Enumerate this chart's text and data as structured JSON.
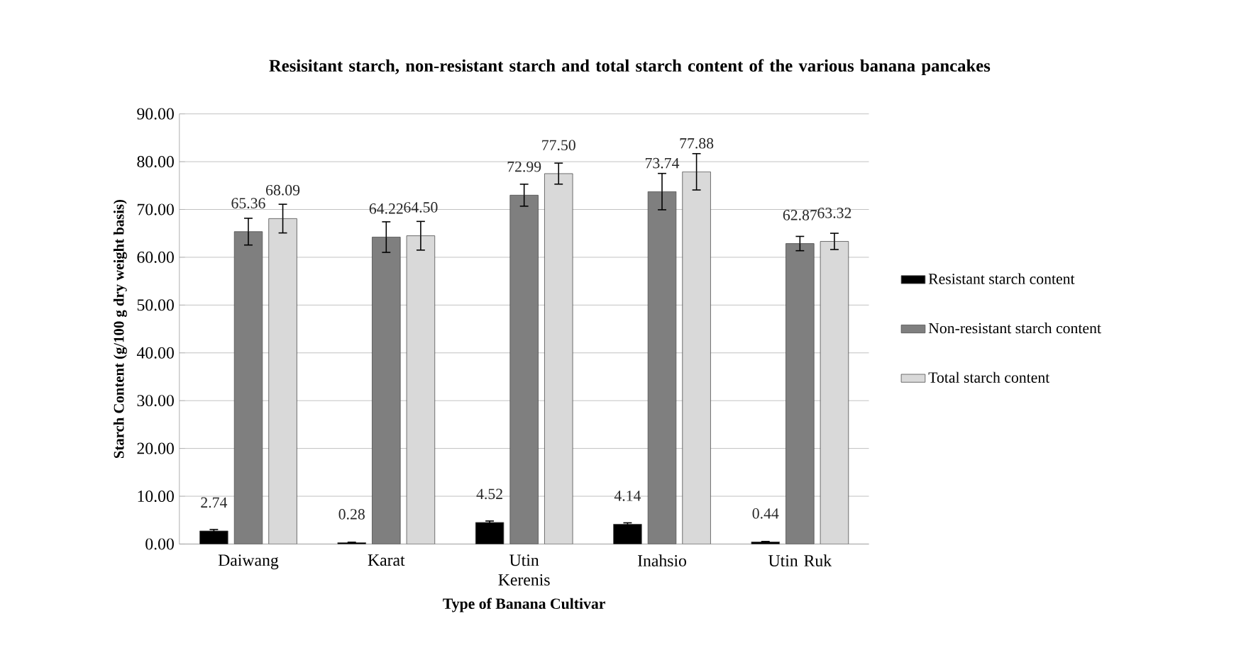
{
  "chart_data": {
    "type": "bar",
    "title": "Resisitant starch, non-resistant starch and total starch content of the various banana pancakes",
    "xlabel": "Type of Banana Cultivar",
    "ylabel": "Starch Content (g/100 g dry weight basis)",
    "categories": [
      "Daiwang",
      "Karat",
      "Utin Kerenis",
      "Inahsio",
      "Utin Ruk"
    ],
    "series": [
      {
        "name": "Resistant starch content",
        "color": "#000000",
        "values": [
          2.74,
          0.28,
          4.52,
          4.14,
          0.44
        ],
        "errors": [
          0.3,
          0.1,
          0.3,
          0.3,
          0.1
        ],
        "value_labels": [
          "2.74",
          "0.28",
          "4.52",
          "4.14",
          "0.44"
        ]
      },
      {
        "name": "Non-resistant starch content",
        "color": "#7f7f7f",
        "values": [
          65.36,
          64.22,
          72.99,
          73.74,
          62.87
        ],
        "errors": [
          2.8,
          3.2,
          2.3,
          3.8,
          1.5
        ],
        "value_labels": [
          "65.36",
          "64.22",
          "72.99",
          "73.74",
          "62.87"
        ]
      },
      {
        "name": "Total starch content",
        "color": "#d9d9d9",
        "values": [
          68.09,
          64.5,
          77.5,
          77.88,
          63.32
        ],
        "errors": [
          3.0,
          3.0,
          2.2,
          3.8,
          1.7
        ],
        "value_labels": [
          "68.09",
          "64.50",
          "77.50",
          "77.88",
          "63.32"
        ]
      }
    ],
    "ylim": [
      0,
      90
    ],
    "yticks": [
      {
        "value": 0,
        "label": "0.00"
      },
      {
        "value": 10,
        "label": "10.00"
      },
      {
        "value": 20,
        "label": "20.00"
      },
      {
        "value": 30,
        "label": "30.00"
      },
      {
        "value": 40,
        "label": "40.00"
      },
      {
        "value": 50,
        "label": "50.00"
      },
      {
        "value": 60,
        "label": "60.00"
      },
      {
        "value": 70,
        "label": "70.00"
      },
      {
        "value": 80,
        "label": "80.00"
      },
      {
        "value": 90,
        "label": "90.00"
      }
    ],
    "grid": "y",
    "legend": "right"
  }
}
